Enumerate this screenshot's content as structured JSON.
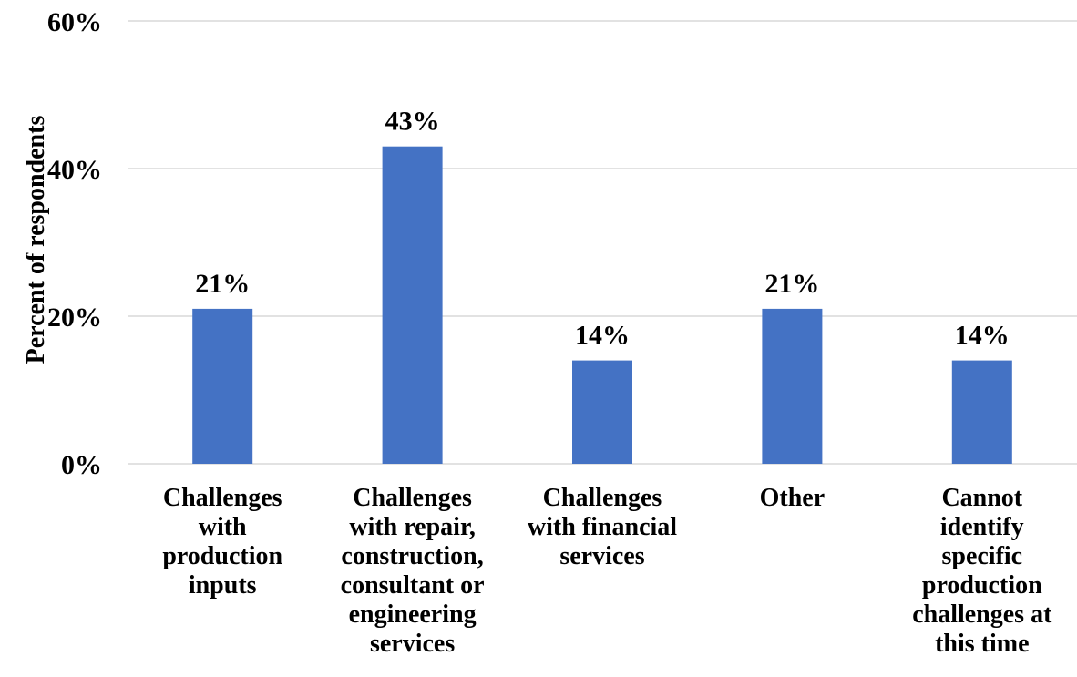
{
  "chart_data": {
    "type": "bar",
    "ylabel": "Percent of respondents",
    "ylim": [
      0,
      60
    ],
    "yticks": [
      "0%",
      "20%",
      "40%",
      "60%"
    ],
    "ytick_values": [
      0,
      20,
      40,
      60
    ],
    "grid": true,
    "legend": "none",
    "bar_color": "#4472c4",
    "categories": [
      "Challenges with production inputs",
      "Challenges with repair, construction, consultant or engineering services",
      "Challenges with financial services",
      "Other",
      "Cannot identify specific production challenges at this time"
    ],
    "category_lines": [
      [
        "Challenges",
        "with",
        "production",
        "inputs"
      ],
      [
        "Challenges",
        "with repair,",
        "construction,",
        "consultant or",
        "engineering",
        "services"
      ],
      [
        "Challenges",
        "with financial",
        "services"
      ],
      [
        "Other"
      ],
      [
        "Cannot",
        "identify",
        "specific",
        "production",
        "challenges at",
        "this time"
      ]
    ],
    "values": [
      21,
      43,
      14,
      21,
      14
    ],
    "data_labels": [
      "21%",
      "43%",
      "14%",
      "21%",
      "14%"
    ]
  }
}
